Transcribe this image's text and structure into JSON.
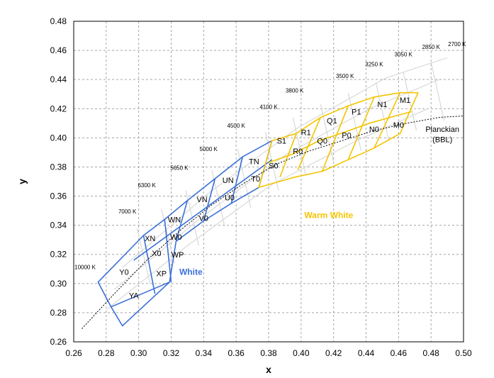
{
  "chart_data": {
    "type": "scatter",
    "title": "",
    "xlabel": "x",
    "ylabel": "y",
    "xlim": [
      0.26,
      0.5
    ],
    "ylim": [
      0.26,
      0.48
    ],
    "x_ticks": [
      "0.26",
      "0.28",
      "0.30",
      "0.32",
      "0.34",
      "0.36",
      "0.38",
      "0.40",
      "0.42",
      "0.44",
      "0.46",
      "0.48",
      "0.50"
    ],
    "y_ticks": [
      "0.26",
      "0.28",
      "0.30",
      "0.32",
      "0.34",
      "0.36",
      "0.38",
      "0.40",
      "0.42",
      "0.44",
      "0.46",
      "0.48"
    ],
    "grid": true,
    "colors": {
      "white": "#3a6fd8",
      "warm_white": "#f5c400",
      "ansi_grid": "#d9d9d9",
      "planckian": "#000000"
    },
    "planckian_curve": {
      "name": "Planckian (BBL)",
      "points": [
        [
          0.265,
          0.269
        ],
        [
          0.285,
          0.293
        ],
        [
          0.305,
          0.316
        ],
        [
          0.325,
          0.336
        ],
        [
          0.345,
          0.354
        ],
        [
          0.365,
          0.369
        ],
        [
          0.385,
          0.382
        ],
        [
          0.405,
          0.391
        ],
        [
          0.425,
          0.398
        ],
        [
          0.445,
          0.405
        ],
        [
          0.465,
          0.41
        ],
        [
          0.485,
          0.414
        ],
        [
          0.5,
          0.415
        ]
      ]
    },
    "cct_labels": [
      {
        "text": "10000 K",
        "x": 0.267,
        "y": 0.31
      },
      {
        "text": "7000 K",
        "x": 0.293,
        "y": 0.348
      },
      {
        "text": "6300 K",
        "x": 0.305,
        "y": 0.366
      },
      {
        "text": "5650 K",
        "x": 0.325,
        "y": 0.378
      },
      {
        "text": "5000 K",
        "x": 0.343,
        "y": 0.391
      },
      {
        "text": "4500 K",
        "x": 0.36,
        "y": 0.407
      },
      {
        "text": "4100 K",
        "x": 0.38,
        "y": 0.42
      },
      {
        "text": "3800 K",
        "x": 0.396,
        "y": 0.431
      },
      {
        "text": "3500 K",
        "x": 0.427,
        "y": 0.441
      },
      {
        "text": "3250 K",
        "x": 0.445,
        "y": 0.449
      },
      {
        "text": "3050 K",
        "x": 0.463,
        "y": 0.456
      },
      {
        "text": "2850 K",
        "x": 0.48,
        "y": 0.461
      },
      {
        "text": "2700 K",
        "x": 0.496,
        "y": 0.463
      }
    ],
    "white_bins": [
      {
        "text": "XN",
        "x": 0.307,
        "y": 0.329
      },
      {
        "text": "X0",
        "x": 0.311,
        "y": 0.319
      },
      {
        "text": "WN",
        "x": 0.322,
        "y": 0.342
      },
      {
        "text": "W0",
        "x": 0.323,
        "y": 0.33
      },
      {
        "text": "WP",
        "x": 0.324,
        "y": 0.318
      },
      {
        "text": "XP",
        "x": 0.314,
        "y": 0.305
      },
      {
        "text": "Y0",
        "x": 0.291,
        "y": 0.306
      },
      {
        "text": "YA",
        "x": 0.297,
        "y": 0.29
      },
      {
        "text": "VN",
        "x": 0.339,
        "y": 0.356
      },
      {
        "text": "V0",
        "x": 0.34,
        "y": 0.343
      },
      {
        "text": "UN",
        "x": 0.355,
        "y": 0.369
      },
      {
        "text": "U0",
        "x": 0.356,
        "y": 0.357
      },
      {
        "text": "TN",
        "x": 0.371,
        "y": 0.382
      },
      {
        "text": "T0",
        "x": 0.372,
        "y": 0.37
      }
    ],
    "warm_bins": [
      {
        "text": "S1",
        "x": 0.388,
        "y": 0.396
      },
      {
        "text": "S0",
        "x": 0.383,
        "y": 0.379
      },
      {
        "text": "R1",
        "x": 0.403,
        "y": 0.402
      },
      {
        "text": "R0",
        "x": 0.398,
        "y": 0.389
      },
      {
        "text": "Q1",
        "x": 0.419,
        "y": 0.41
      },
      {
        "text": "Q0",
        "x": 0.413,
        "y": 0.396
      },
      {
        "text": "P1",
        "x": 0.434,
        "y": 0.416
      },
      {
        "text": "P0",
        "x": 0.428,
        "y": 0.4
      },
      {
        "text": "N1",
        "x": 0.45,
        "y": 0.421
      },
      {
        "text": "N0",
        "x": 0.445,
        "y": 0.404
      },
      {
        "text": "M1",
        "x": 0.464,
        "y": 0.424
      },
      {
        "text": "M0",
        "x": 0.46,
        "y": 0.407
      }
    ],
    "group_labels": [
      {
        "text": "White",
        "x": 0.325,
        "y": 0.306,
        "color": "#3a6fd8"
      },
      {
        "text": "Warm White",
        "x": 0.402,
        "y": 0.345,
        "color": "#f5c400"
      }
    ],
    "annotations": [
      {
        "text": "Planckian",
        "x": 0.487,
        "y": 0.404
      },
      {
        "text": "(BBL)",
        "x": 0.487,
        "y": 0.397
      }
    ],
    "white_region": {
      "outline": [
        [
          0.275,
          0.301
        ],
        [
          0.303,
          0.333
        ],
        [
          0.316,
          0.344
        ],
        [
          0.33,
          0.357
        ],
        [
          0.347,
          0.372
        ],
        [
          0.364,
          0.387
        ],
        [
          0.382,
          0.398
        ],
        [
          0.374,
          0.366
        ],
        [
          0.357,
          0.355
        ],
        [
          0.34,
          0.343
        ],
        [
          0.323,
          0.329
        ],
        [
          0.319,
          0.301
        ],
        [
          0.29,
          0.271
        ],
        [
          0.283,
          0.284
        ]
      ],
      "inner_lines": [
        [
          [
            0.303,
            0.333
          ],
          [
            0.31,
            0.293
          ]
        ],
        [
          [
            0.316,
            0.344
          ],
          [
            0.32,
            0.301
          ]
        ],
        [
          [
            0.33,
            0.357
          ],
          [
            0.323,
            0.329
          ]
        ],
        [
          [
            0.347,
            0.372
          ],
          [
            0.34,
            0.343
          ]
        ],
        [
          [
            0.364,
            0.387
          ],
          [
            0.357,
            0.355
          ]
        ],
        [
          [
            0.283,
            0.284
          ],
          [
            0.319,
            0.301
          ]
        ],
        [
          [
            0.297,
            0.316
          ],
          [
            0.382,
            0.385
          ]
        ]
      ]
    },
    "warm_region": {
      "outline": [
        [
          0.382,
          0.398
        ],
        [
          0.397,
          0.403
        ],
        [
          0.412,
          0.414
        ],
        [
          0.429,
          0.422
        ],
        [
          0.445,
          0.428
        ],
        [
          0.461,
          0.431
        ],
        [
          0.472,
          0.431
        ],
        [
          0.461,
          0.403
        ],
        [
          0.445,
          0.393
        ],
        [
          0.429,
          0.385
        ],
        [
          0.413,
          0.377
        ],
        [
          0.396,
          0.373
        ],
        [
          0.374,
          0.366
        ]
      ],
      "inner_lines": [
        [
          [
            0.397,
            0.403
          ],
          [
            0.387,
            0.373
          ]
        ],
        [
          [
            0.412,
            0.414
          ],
          [
            0.398,
            0.378
          ]
        ],
        [
          [
            0.429,
            0.422
          ],
          [
            0.413,
            0.377
          ]
        ],
        [
          [
            0.445,
            0.428
          ],
          [
            0.429,
            0.385
          ]
        ],
        [
          [
            0.461,
            0.431
          ],
          [
            0.445,
            0.393
          ]
        ],
        [
          [
            0.38,
            0.383
          ],
          [
            0.395,
            0.389
          ],
          [
            0.411,
            0.398
          ],
          [
            0.427,
            0.404
          ],
          [
            0.442,
            0.41
          ],
          [
            0.458,
            0.415
          ],
          [
            0.468,
            0.418
          ]
        ]
      ]
    },
    "ansi_grid_lines": [
      [
        [
          0.29,
          0.311
        ],
        [
          0.343,
          0.362
        ],
        [
          0.398,
          0.407
        ],
        [
          0.452,
          0.441
        ],
        [
          0.49,
          0.455
        ]
      ],
      [
        [
          0.285,
          0.296
        ],
        [
          0.337,
          0.344
        ],
        [
          0.39,
          0.388
        ],
        [
          0.442,
          0.42
        ],
        [
          0.485,
          0.44
        ]
      ],
      [
        [
          0.28,
          0.282
        ],
        [
          0.33,
          0.326
        ],
        [
          0.382,
          0.368
        ],
        [
          0.434,
          0.398
        ],
        [
          0.478,
          0.42
        ]
      ],
      [
        [
          0.299,
          0.338
        ],
        [
          0.307,
          0.3
        ]
      ],
      [
        [
          0.314,
          0.351
        ],
        [
          0.322,
          0.314
        ]
      ],
      [
        [
          0.329,
          0.364
        ],
        [
          0.337,
          0.326
        ]
      ],
      [
        [
          0.345,
          0.378
        ],
        [
          0.353,
          0.339
        ]
      ],
      [
        [
          0.361,
          0.392
        ],
        [
          0.369,
          0.352
        ]
      ],
      [
        [
          0.378,
          0.404
        ],
        [
          0.386,
          0.364
        ]
      ],
      [
        [
          0.395,
          0.414
        ],
        [
          0.403,
          0.374
        ]
      ],
      [
        [
          0.412,
          0.423
        ],
        [
          0.42,
          0.383
        ]
      ],
      [
        [
          0.429,
          0.431
        ],
        [
          0.437,
          0.391
        ]
      ],
      [
        [
          0.446,
          0.438
        ],
        [
          0.454,
          0.398
        ]
      ],
      [
        [
          0.463,
          0.445
        ],
        [
          0.471,
          0.405
        ]
      ],
      [
        [
          0.48,
          0.452
        ],
        [
          0.488,
          0.412
        ]
      ]
    ]
  }
}
